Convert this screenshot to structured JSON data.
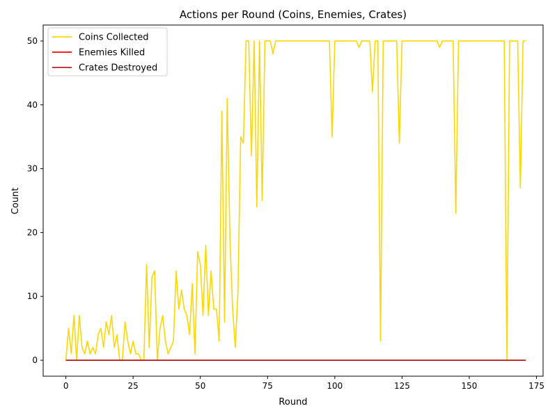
{
  "chart_data": {
    "type": "line",
    "title": "Actions per Round (Coins, Enemies, Crates)",
    "xlabel": "Round",
    "ylabel": "Count",
    "xlim": [
      -8.45,
      177.45
    ],
    "ylim": [
      -2.5,
      52.5
    ],
    "xticks": [
      0,
      25,
      50,
      75,
      100,
      125,
      150,
      175
    ],
    "yticks": [
      0,
      10,
      20,
      30,
      40,
      50
    ],
    "grid": false,
    "legend_position": "upper left",
    "series": [
      {
        "name": "Coins Collected",
        "color": "#ffd700",
        "values": [
          0,
          5,
          1,
          7,
          0,
          7,
          2,
          1,
          3,
          1,
          2,
          1,
          4,
          5,
          2,
          6,
          4,
          7,
          2,
          4,
          0,
          0,
          6,
          3,
          1,
          3,
          1,
          1,
          0,
          0,
          15,
          2,
          13,
          14,
          0,
          5,
          7,
          3,
          1,
          2,
          3,
          14,
          8,
          11,
          8,
          7,
          4,
          12,
          1,
          17,
          15,
          7,
          18,
          7,
          14,
          8,
          8,
          3,
          39,
          6,
          41,
          19,
          8,
          2,
          11,
          35,
          34,
          50,
          50,
          32,
          50,
          24,
          50,
          25,
          50,
          50,
          50,
          48,
          50,
          50,
          50,
          50,
          50,
          50,
          50,
          50,
          50,
          50,
          50,
          50,
          50,
          50,
          50,
          50,
          50,
          50,
          50,
          50,
          50,
          35,
          50,
          50,
          50,
          50,
          50,
          50,
          50,
          50,
          50,
          49,
          50,
          50,
          50,
          50,
          42,
          50,
          50,
          3,
          50,
          50,
          50,
          50,
          50,
          50,
          34,
          50,
          50,
          50,
          50,
          50,
          50,
          50,
          50,
          50,
          50,
          50,
          50,
          50,
          50,
          49,
          50,
          50,
          50,
          50,
          50,
          23,
          50,
          50,
          50,
          50,
          50,
          50,
          50,
          50,
          50,
          50,
          50,
          50,
          50,
          50,
          50,
          50,
          50,
          50,
          0,
          50,
          50,
          50,
          50,
          27,
          50,
          50
        ]
      },
      {
        "name": "Enemies Killed",
        "color": "#ff0000",
        "values": "zeros"
      },
      {
        "name": "Crates Destroyed",
        "color": "#b22222",
        "values": "zeros"
      }
    ]
  }
}
